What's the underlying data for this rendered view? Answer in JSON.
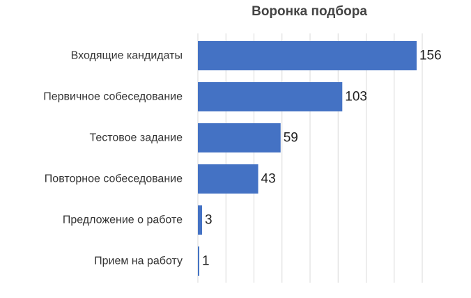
{
  "chart_data": {
    "type": "bar",
    "orientation": "horizontal",
    "title": "Воронка подбора",
    "categories": [
      "Входящие кандидаты",
      "Первичное собеседование",
      "Тестовое задание",
      "Повторное собеседование",
      "Предложение о работе",
      "Прием на работу"
    ],
    "values": [
      156,
      103,
      59,
      43,
      3,
      1
    ],
    "xlim": [
      0,
      160
    ],
    "xlabel": "",
    "ylabel": "",
    "grid": true,
    "legend": "none",
    "bar_color": "#4472C4",
    "grid_color": "#d9d9d9"
  }
}
